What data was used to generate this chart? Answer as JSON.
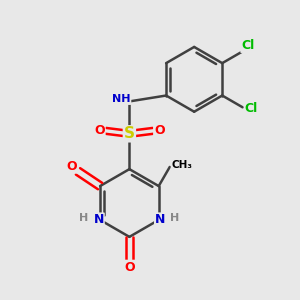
{
  "bg_color": "#e8e8e8",
  "atom_colors": {
    "C": "#000000",
    "N": "#0000cc",
    "O": "#ff0000",
    "S": "#cccc00",
    "Cl": "#00bb00",
    "H": "#888888"
  },
  "bond_color": "#404040",
  "bond_width": 1.8,
  "fig_w": 3.0,
  "fig_h": 3.0,
  "dpi": 100
}
